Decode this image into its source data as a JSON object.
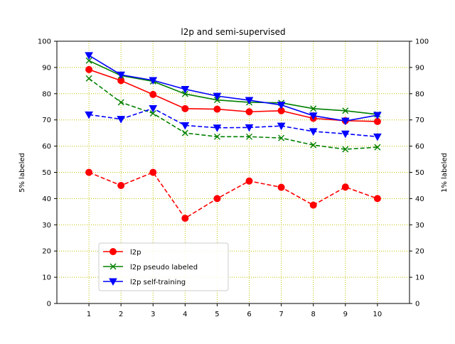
{
  "chart_data": {
    "type": "line",
    "title": "l2p and semi-supervised",
    "ylabel": "5% labeled",
    "ylabel_right": "1% labeled",
    "xlabel": "",
    "x": [
      1,
      2,
      3,
      4,
      5,
      6,
      7,
      8,
      9,
      10
    ],
    "xlim": [
      0,
      11
    ],
    "ylim": [
      0,
      100
    ],
    "yticks": [
      0,
      10,
      20,
      30,
      40,
      50,
      60,
      70,
      80,
      90,
      100
    ],
    "grid": true,
    "grid_color": "#bfbf00",
    "legend_position": "lower-left",
    "series": [
      {
        "name": "l2p",
        "axis": "left",
        "line_style": "solid",
        "color": "#ff0000",
        "marker": "circle",
        "values": [
          89.2,
          85.0,
          79.7,
          74.3,
          74.1,
          73.1,
          73.5,
          70.6,
          69.7,
          69.4
        ]
      },
      {
        "name": "l2p pseudo labeled",
        "axis": "left",
        "line_style": "solid",
        "color": "#008000",
        "marker": "x",
        "values": [
          92.6,
          86.9,
          84.7,
          79.9,
          77.6,
          76.7,
          76.5,
          74.3,
          73.5,
          72.1
        ]
      },
      {
        "name": "l2p self-training",
        "axis": "left",
        "line_style": "solid",
        "color": "#0000ff",
        "marker": "triangle-down",
        "values": [
          94.6,
          87.2,
          85.1,
          81.7,
          79.1,
          77.5,
          75.7,
          71.6,
          69.6,
          71.8
        ]
      },
      {
        "name": "",
        "axis": "right",
        "line_style": "dashed",
        "color": "#ff0000",
        "marker": "circle",
        "values": [
          50.0,
          45.0,
          50.0,
          32.5,
          40.0,
          46.7,
          44.3,
          37.5,
          44.4,
          40.0
        ]
      },
      {
        "name": "",
        "axis": "right",
        "line_style": "dashed",
        "color": "#008000",
        "marker": "x",
        "values": [
          85.8,
          76.7,
          72.5,
          65.0,
          63.6,
          63.6,
          63.1,
          60.4,
          58.8,
          59.6
        ]
      },
      {
        "name": "",
        "axis": "right",
        "line_style": "dashed",
        "color": "#0000ff",
        "marker": "triangle-down",
        "values": [
          72.0,
          70.3,
          74.4,
          67.9,
          67.0,
          67.1,
          67.7,
          65.6,
          64.7,
          63.6
        ]
      }
    ],
    "legend": [
      "l2p",
      "l2p pseudo labeled",
      "l2p self-training"
    ]
  }
}
